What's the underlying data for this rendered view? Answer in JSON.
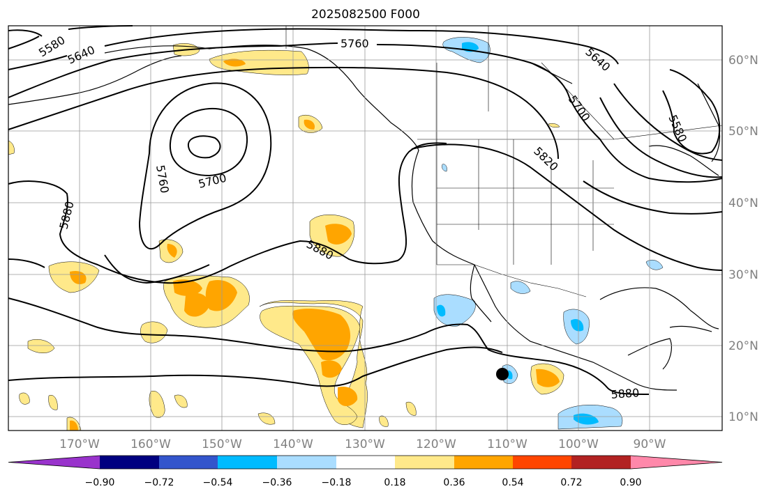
{
  "title": "2025082500 F000",
  "lon_labels": [
    "170°W",
    "160°W",
    "150°W",
    "140°W",
    "130°W",
    "120°W",
    "110°W",
    "100°W",
    "90°W"
  ],
  "lat_labels": [
    "60°N",
    "50°N",
    "40°N",
    "30°N",
    "20°N",
    "10°N"
  ],
  "contour_labels": [
    "5580",
    "5640",
    "5760",
    "5640",
    "5700",
    "5580",
    "5820",
    "5700",
    "5760",
    "5880",
    "5880",
    "5880"
  ],
  "colorbar": {
    "tick_labels": [
      "−0.90",
      "−0.72",
      "−0.54",
      "−0.36",
      "−0.18",
      "0.18",
      "0.36",
      "0.54",
      "0.72",
      "0.90"
    ],
    "colors": [
      "#9933cc",
      "#000080",
      "#3355cc",
      "#00bbff",
      "#aaddff",
      "#ffffff",
      "#ffe98a",
      "#ffa500",
      "#ff4500",
      "#b22222",
      "#ff88aa"
    ]
  },
  "colors": {
    "contour": "#000000",
    "grid": "#999999",
    "axis_label": "#808080",
    "light_blue_fill": "#aaddff",
    "blue_fill": "#00bbff",
    "light_yellow_fill": "#ffe98a",
    "orange_fill": "#ffa500",
    "marker": "#000000"
  }
}
